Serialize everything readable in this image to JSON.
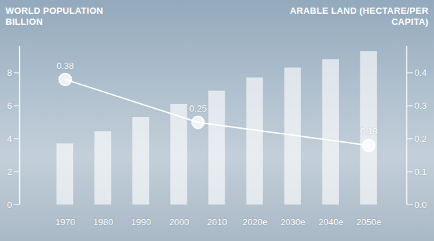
{
  "chart_data": {
    "type": "bar",
    "x": [
      1970,
      1980,
      1990,
      2000,
      2010,
      2020,
      2030,
      2040,
      2050
    ],
    "xlim": [
      1958,
      2060
    ],
    "xticks": [
      1970,
      1980,
      1990,
      2000,
      2010,
      {
        "value": 2020,
        "label": "2020e"
      },
      {
        "value": 2030,
        "label": "2030e"
      },
      {
        "value": 2040,
        "label": "2040e"
      },
      {
        "value": 2050,
        "label": "2050e"
      }
    ],
    "ylim": [
      0,
      9.6
    ],
    "yticks": [
      0,
      2,
      4,
      6,
      8
    ],
    "y2lim": [
      0,
      0.48
    ],
    "y2ticks": [
      {
        "value": 0,
        "label": "0.0"
      },
      0.1,
      0.2,
      0.3,
      0.4
    ],
    "series": [
      {
        "name": "WORLD POPULATION BILLION",
        "type": "bar",
        "color": "#ffffff",
        "values": [
          3.7,
          4.45,
          5.3,
          6.1,
          6.9,
          7.7,
          8.3,
          8.8,
          9.3
        ]
      },
      {
        "name": "ARABLE LAND (HECTARE/PER CAPITA)",
        "type": "line",
        "axis": "y2",
        "color": "#ffffff",
        "marker": "circle",
        "data_labels": true,
        "x": [
          1970,
          2005,
          2050
        ],
        "values": [
          0.38,
          0.25,
          0.18
        ]
      }
    ]
  }
}
